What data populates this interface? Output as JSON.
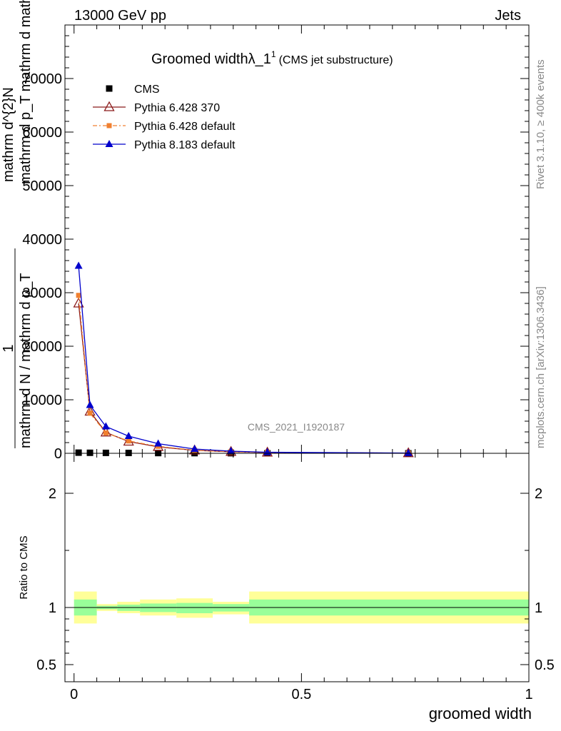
{
  "header": {
    "left": "13000 GeV pp",
    "right": "Jets"
  },
  "side_labels": {
    "rivet": "Rivet 3.1.10, ≥ 400k events",
    "mcplots": "mcplots.cern.ch [arXiv:1306.3436]"
  },
  "watermark": "CMS_2021_I1920187",
  "chart_data": [
    {
      "type": "line",
      "title": "Groomed widthλ_1",
      "title_sup": "1",
      "subtitle": "(CMS jet substructure)",
      "ylabel_line1": "mathrm d^{2}N",
      "ylabel_line2": "mathrm d p_T mathrm d mathrm d lambda",
      "ylabel_fraction_top": "1",
      "ylabel_fraction_bottom": "mathrm d N / mathrm d p_T",
      "xlim": [
        -0.02,
        1.0
      ],
      "ylim": [
        0,
        80000
      ],
      "yticks": [
        0,
        10000,
        20000,
        30000,
        40000,
        50000,
        60000,
        70000
      ],
      "ytick_labels": [
        "0",
        "10000",
        "20000",
        "30000",
        "40000",
        "50000",
        "60000",
        "70000"
      ],
      "legend_position": "top-left",
      "series": [
        {
          "name": "CMS",
          "color": "#000000",
          "marker": "square",
          "x": [
            0.01,
            0.035,
            0.07,
            0.12,
            0.185,
            0.265,
            0.345,
            0.425,
            0.735
          ],
          "y": [
            120,
            95,
            80,
            70,
            45,
            30,
            18,
            10,
            4
          ]
        },
        {
          "name": "Pythia 6.428 370",
          "color": "#8b1a1a",
          "marker": "triangle-open",
          "x": [
            0.01,
            0.035,
            0.07,
            0.12,
            0.185,
            0.265,
            0.345,
            0.425,
            0.735
          ],
          "y": [
            28000,
            7800,
            3900,
            2200,
            1200,
            550,
            280,
            150,
            30
          ]
        },
        {
          "name": "Pythia 6.428 default",
          "color": "#f08030",
          "marker": "square-small",
          "x": [
            0.01,
            0.035,
            0.07,
            0.12,
            0.185,
            0.265,
            0.345,
            0.425,
            0.735
          ],
          "y": [
            29500,
            7500,
            3800,
            2300,
            1300,
            580,
            290,
            160,
            30
          ]
        },
        {
          "name": "Pythia 8.183 default",
          "color": "#0000cc",
          "marker": "triangle",
          "x": [
            0.01,
            0.035,
            0.07,
            0.12,
            0.185,
            0.265,
            0.345,
            0.425,
            0.735
          ],
          "y": [
            35000,
            9000,
            5000,
            3200,
            1800,
            800,
            400,
            200,
            40
          ]
        }
      ]
    },
    {
      "type": "area",
      "ylabel": "Ratio to CMS",
      "xlabel": "groomed width",
      "xlim": [
        -0.02,
        1.0
      ],
      "ylim": [
        0.35,
        2.35
      ],
      "xticks": [
        0,
        0.5,
        1
      ],
      "xtick_labels": [
        "0",
        "0.5",
        "1"
      ],
      "yticks": [
        0.5,
        1,
        2
      ],
      "ytick_labels": [
        "0.5",
        "1",
        "2"
      ],
      "reference": 1,
      "bins": [
        {
          "x0": 0.0,
          "x1": 0.05,
          "inner": [
            0.93,
            1.07
          ],
          "outer": [
            0.86,
            1.14
          ]
        },
        {
          "x0": 0.05,
          "x1": 0.095,
          "inner": [
            0.985,
            1.015
          ],
          "outer": [
            0.97,
            1.03
          ]
        },
        {
          "x0": 0.095,
          "x1": 0.145,
          "inner": [
            0.97,
            1.025
          ],
          "outer": [
            0.95,
            1.05
          ]
        },
        {
          "x0": 0.145,
          "x1": 0.225,
          "inner": [
            0.96,
            1.035
          ],
          "outer": [
            0.93,
            1.07
          ]
        },
        {
          "x0": 0.225,
          "x1": 0.305,
          "inner": [
            0.95,
            1.04
          ],
          "outer": [
            0.91,
            1.08
          ]
        },
        {
          "x0": 0.305,
          "x1": 0.385,
          "inner": [
            0.965,
            1.03
          ],
          "outer": [
            0.94,
            1.05
          ]
        },
        {
          "x0": 0.385,
          "x1": 1.0,
          "inner": [
            0.93,
            1.07
          ],
          "outer": [
            0.86,
            1.14
          ]
        }
      ]
    }
  ]
}
